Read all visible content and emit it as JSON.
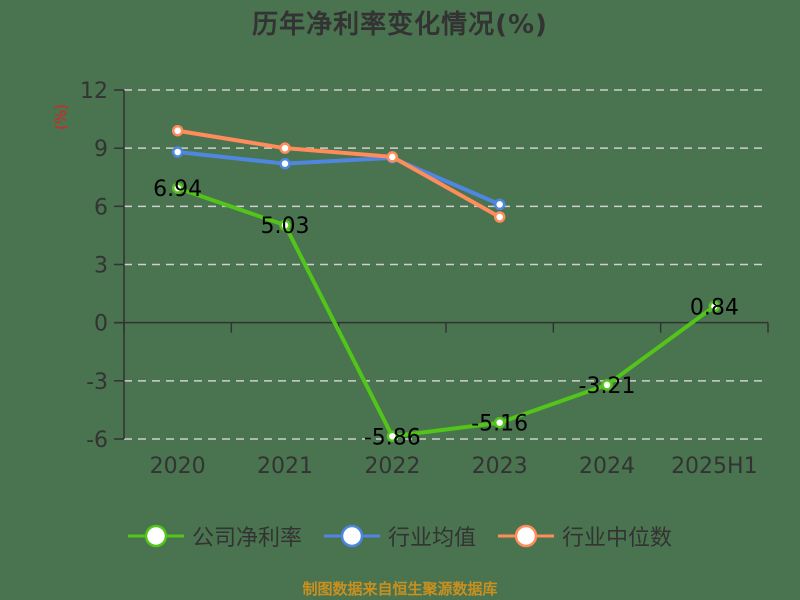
{
  "title": "历年净利率变化情况(%)",
  "y_unit": "(%)",
  "source": "制图数据来自恒生聚源数据库",
  "colors": {
    "company": "#52c41a",
    "industry_avg": "#4e86e0",
    "industry_median": "#ff8c5a",
    "grid": "#d0d0d0",
    "axis": "#333333",
    "unit": "#e02020",
    "source": "#c8901f"
  },
  "legend": [
    {
      "label": "公司净利率",
      "color": "#52c41a"
    },
    {
      "label": "行业均值",
      "color": "#4e86e0"
    },
    {
      "label": "行业中位数",
      "color": "#ff8c5a"
    }
  ],
  "chart_data": {
    "type": "line",
    "title": "历年净利率变化情况(%)",
    "xlabel": "",
    "ylabel": "(%)",
    "categories": [
      "2020",
      "2021",
      "2022",
      "2023",
      "2024",
      "2025H1"
    ],
    "ylim": [
      -6,
      12
    ],
    "yticks": [
      12,
      9,
      6,
      3,
      0,
      -3,
      -6
    ],
    "grid": true,
    "legend_position": "bottom",
    "series": [
      {
        "name": "公司净利率",
        "values": [
          6.94,
          5.03,
          -5.86,
          -5.16,
          -3.21,
          0.84
        ],
        "labels": [
          "6.94",
          "5.03",
          "-5.86",
          "-5.16",
          "-3.21",
          "0.84"
        ]
      },
      {
        "name": "行业均值",
        "values": [
          8.8,
          8.2,
          8.5,
          6.1,
          null,
          null
        ]
      },
      {
        "name": "行业中位数",
        "values": [
          9.9,
          9.0,
          8.55,
          5.45,
          null,
          null
        ]
      }
    ]
  }
}
